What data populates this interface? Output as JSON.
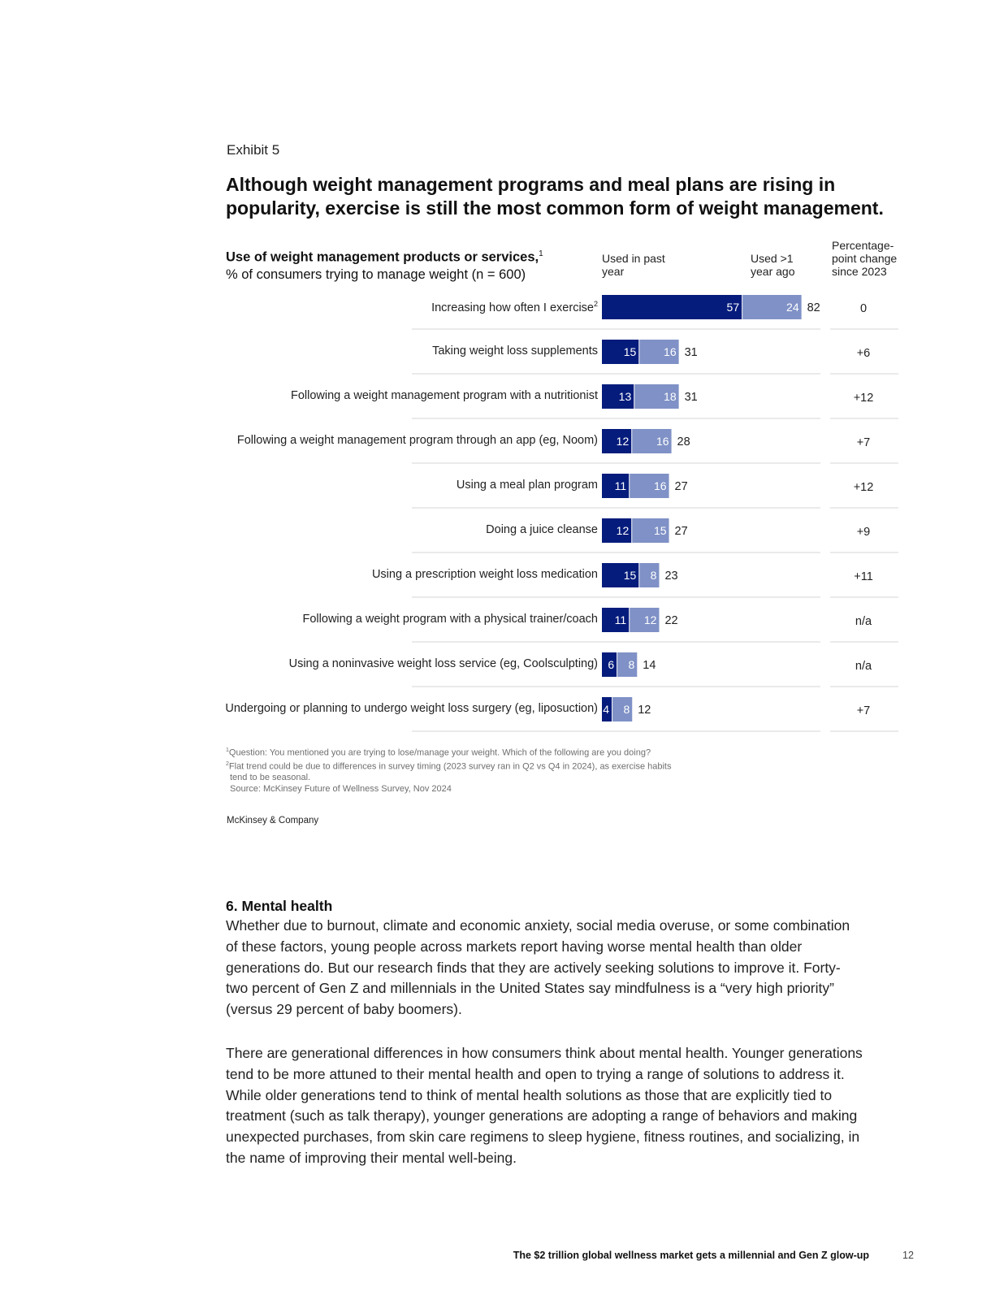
{
  "exhibit": {
    "label": "Exhibit 5",
    "title": "Although weight management programs and meal plans are rising in popularity, exercise is still the most common form of weight management."
  },
  "chart_data": {
    "type": "bar",
    "orientation": "horizontal",
    "stacked": true,
    "title": "Use of weight management products or services,",
    "title_footnote": "1",
    "subtitle": "% of consumers trying to manage weight (n = 600)",
    "column_headers": {
      "series1": "Used in past year",
      "series2": "Used >1 year ago",
      "change": "Percentage-point change since 2023"
    },
    "categories": [
      "Increasing how often I exercise",
      "Taking weight loss supplements",
      "Following a weight management program with a nutritionist",
      "Following a weight management program through an app (eg, Noom)",
      "Using a meal plan program",
      "Doing a juice cleanse",
      "Using a prescription weight loss medication",
      "Following a weight program with a physical trainer/coach",
      "Using a noninvasive weight loss service (eg, Coolsculpting)",
      "Undergoing or planning to undergo weight loss surgery (eg, liposuction)"
    ],
    "category_footnotes": [
      "2",
      "",
      "",
      "",
      "",
      "",
      "",
      "",
      "",
      ""
    ],
    "series": [
      {
        "name": "Used in past year",
        "values": [
          57,
          15,
          13,
          12,
          11,
          12,
          15,
          11,
          6,
          4
        ],
        "color": "#051c7c"
      },
      {
        "name": "Used >1 year ago",
        "values": [
          24,
          16,
          18,
          16,
          16,
          15,
          8,
          12,
          8,
          8
        ],
        "color": "#7f91c6"
      }
    ],
    "totals": [
      82,
      31,
      31,
      28,
      27,
      27,
      23,
      22,
      14,
      12
    ],
    "change_since_2023": [
      "0",
      "+6",
      "+12",
      "+7",
      "+12",
      "+9",
      "+11",
      "n/a",
      "n/a",
      "+7"
    ],
    "xlim": [
      0,
      85
    ],
    "grid": false,
    "legend": "column headers above bars"
  },
  "footnotes": [
    "Question: You mentioned you are trying to lose/manage your weight. Which of the following are you doing?",
    "Flat trend could be due to differences in survey timing (2023 survey ran in Q2 vs Q4 in 2024), as exercise habits",
    "tend to be seasonal.",
    "Source: McKinsey Future of Wellness Survey, Nov 2024"
  ],
  "footnote_marks": [
    "1",
    "2"
  ],
  "brand": "McKinsey & Company",
  "section": {
    "heading": "6. Mental health",
    "paragraphs": [
      "Whether due to burnout, climate and economic anxiety, social media overuse, or some combination of these factors, young people across markets report having worse mental health than older generations do. But our research finds that they are actively seeking solutions to improve it. Forty-two percent of Gen Z and millennials in the United States say mindfulness is a “very high priority” (versus 29 percent of baby boomers).",
      "There are generational differences in how consumers think about mental health. Younger generations tend to be more attuned to their mental health and open to trying a range of solutions to address it. While older generations tend to think of mental health solutions as those that are explicitly tied to treatment (such as talk therapy), younger generations are adopting a range of behaviors and making unexpected purchases, from skin care regimens to sleep hygiene, fitness routines, and socializing, in the name of improving their mental well-being."
    ]
  },
  "footer": {
    "title": "The $2 trillion global wellness market gets a millennial and Gen Z glow-up",
    "page_number": "12"
  }
}
